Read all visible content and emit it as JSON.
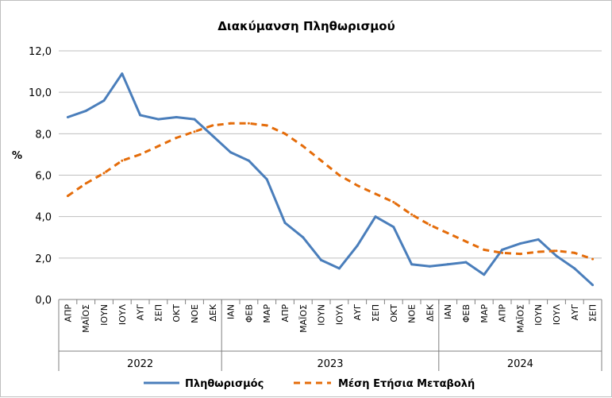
{
  "chart_data": {
    "type": "line",
    "title": "Διακύμανση Πληθωρισμού",
    "ylabel": "%",
    "xlabel": "",
    "ylim": [
      0,
      12
    ],
    "yticks": [
      "0,0",
      "2,0",
      "4,0",
      "6,0",
      "8,0",
      "10,0",
      "12,0"
    ],
    "grid": true,
    "legend_position": "bottom",
    "categories": [
      "ΑΠΡ",
      "ΜΑΪΟΣ",
      "ΙΟΥΝ",
      "ΙΟΥΛ",
      "ΑΥΓ",
      "ΣΕΠ",
      "ΟΚΤ",
      "ΝΟΕ",
      "ΔΕΚ",
      "ΙΑΝ",
      "ΦΕΒ",
      "ΜΑΡ",
      "ΑΠΡ",
      "ΜΑΪΟΣ",
      "ΙΟΥΝ",
      "ΙΟΥΛ",
      "ΑΥΓ",
      "ΣΕΠ",
      "ΟΚΤ",
      "ΝΟΕ",
      "ΔΕΚ",
      "ΙΑΝ",
      "ΦΕΒ",
      "ΜΑΡ",
      "ΑΠΡ",
      "ΜΑΪΟΣ",
      "ΙΟΥΝ",
      "ΙΟΥΛ",
      "ΑΥΓ",
      "ΣΕΠ"
    ],
    "year_groups": [
      {
        "label": "2022",
        "start": 0,
        "count": 9
      },
      {
        "label": "2023",
        "start": 9,
        "count": 12
      },
      {
        "label": "2024",
        "start": 21,
        "count": 9
      }
    ],
    "series": [
      {
        "name": "Πληθωρισμός",
        "color": "#4a7ebb",
        "style": "solid",
        "values": [
          8.8,
          9.1,
          9.6,
          10.9,
          8.9,
          8.7,
          8.8,
          8.7,
          7.9,
          7.1,
          6.7,
          5.8,
          3.7,
          3.0,
          1.9,
          1.5,
          2.6,
          4.0,
          3.5,
          1.7,
          1.6,
          1.7,
          1.8,
          1.2,
          2.4,
          2.7,
          2.9,
          2.1,
          1.5,
          0.7
        ]
      },
      {
        "name": "Μέση Ετήσια Μεταβολή",
        "color": "#e46c0a",
        "style": "dashed",
        "values": [
          5.0,
          5.6,
          6.1,
          6.7,
          7.0,
          7.4,
          7.8,
          8.1,
          8.4,
          8.5,
          8.5,
          8.4,
          8.0,
          7.4,
          6.7,
          6.0,
          5.5,
          5.1,
          4.7,
          4.1,
          3.6,
          3.2,
          2.8,
          2.4,
          2.25,
          2.2,
          2.3,
          2.35,
          2.25,
          1.95
        ]
      }
    ]
  }
}
